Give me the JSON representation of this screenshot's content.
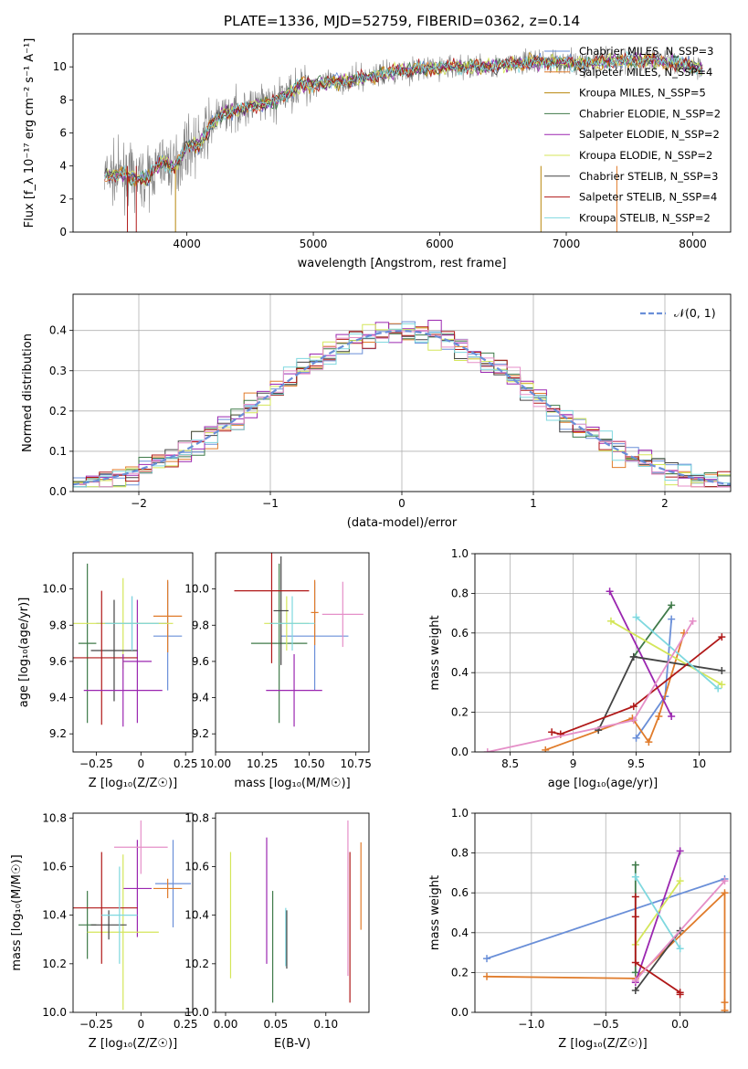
{
  "title": "PLATE=1336, MJD=52759, FIBERID=0362, z=0.14",
  "palette": [
    "#6a8fd8",
    "#e07b2a",
    "#3f7a49",
    "#9b27b0",
    "#d4e65a",
    "#444444",
    "#b01818",
    "#7fd8df",
    "#e58fc8"
  ],
  "chart_data": [
    {
      "id": "spectrum",
      "type": "line",
      "xlabel": "wavelength [Angstrom, rest frame]",
      "ylabel": "Flux [f_λ 10⁻¹⁷ erg cm⁻² s⁻¹ A⁻¹]",
      "xlim": [
        3100,
        8300
      ],
      "ylim": [
        0,
        12
      ],
      "xticks": [
        4000,
        5000,
        6000,
        7000,
        8000
      ],
      "yticks": [
        0,
        2,
        4,
        6,
        8,
        10
      ],
      "legend_position": "top-right",
      "data_color": "#808080",
      "continuum": [
        [
          3350,
          3.4
        ],
        [
          3500,
          3.5
        ],
        [
          3600,
          3.2
        ],
        [
          3700,
          3.3
        ],
        [
          3800,
          4.3
        ],
        [
          3900,
          3.9
        ],
        [
          4000,
          5.2
        ],
        [
          4100,
          5.3
        ],
        [
          4200,
          6.6
        ],
        [
          4300,
          7.2
        ],
        [
          4500,
          7.6
        ],
        [
          4700,
          7.9
        ],
        [
          4900,
          8.9
        ],
        [
          5100,
          9.0
        ],
        [
          5300,
          9.2
        ],
        [
          5500,
          9.5
        ],
        [
          5700,
          9.8
        ],
        [
          5900,
          9.9
        ],
        [
          6100,
          10.0
        ],
        [
          6300,
          10.0
        ],
        [
          6500,
          10.1
        ],
        [
          6700,
          10.3
        ],
        [
          6900,
          10.3
        ],
        [
          7100,
          10.2
        ],
        [
          7300,
          10.3
        ],
        [
          7500,
          10.4
        ],
        [
          7700,
          10.4
        ],
        [
          7900,
          10.2
        ],
        [
          8080,
          9.9
        ]
      ],
      "series": [
        {
          "name": "Chabrier MILES, N_SSP=3",
          "color": "#6a8fd8"
        },
        {
          "name": "Salpeter MILES, N_SSP=4",
          "color": "#e07b2a"
        },
        {
          "name": "Kroupa MILES, N_SSP=5",
          "color": "#b8860b"
        },
        {
          "name": "Chabrier ELODIE, N_SSP=2",
          "color": "#3f7a49"
        },
        {
          "name": "Salpeter ELODIE, N_SSP=2",
          "color": "#9b27b0"
        },
        {
          "name": "Kroupa ELODIE, N_SSP=2",
          "color": "#d4e65a"
        },
        {
          "name": "Chabrier STELIB, N_SSP=3",
          "color": "#444444"
        },
        {
          "name": "Salpeter STELIB, N_SSP=4",
          "color": "#b01818"
        },
        {
          "name": "Kroupa STELIB, N_SSP=2",
          "color": "#7fd8df"
        }
      ]
    },
    {
      "id": "residuals",
      "type": "histogram",
      "xlabel": "(data-model)/error",
      "ylabel": "Normed distribution",
      "xlim": [
        -2.5,
        2.5
      ],
      "ylim": [
        0,
        0.49
      ],
      "xticks": [
        -2,
        -1,
        0,
        1,
        2
      ],
      "yticks": [
        0.0,
        0.1,
        0.2,
        0.3,
        0.4
      ],
      "grid": true,
      "legend_position": "top-right",
      "reference_curve": {
        "name": "𝒩(0, 1)",
        "color": "#6a8fd8",
        "style": "dashed"
      },
      "bin_width": 0.1,
      "bin_start": -2.5
    },
    {
      "id": "age_Z",
      "type": "errorbar",
      "xlabel": "Z [log₁₀(Z/Z☉)]",
      "ylabel": "age  [log₁₀(age/yr)]",
      "xlim": [
        -0.38,
        0.29
      ],
      "ylim": [
        9.1,
        10.2
      ],
      "xticks": [
        -0.25,
        0.0,
        0.25
      ],
      "yticks": [
        9.2,
        9.4,
        9.6,
        9.8,
        10.0
      ],
      "points": [
        {
          "x": -0.05,
          "y": 9.81,
          "xerr": 0.2,
          "yerr": 0.15,
          "color": "#6a8fd8"
        },
        {
          "x": 0.15,
          "y": 9.74,
          "xerr": 0.08,
          "yerr": 0.3,
          "color": "#6a8fd8"
        },
        {
          "x": 0.15,
          "y": 9.85,
          "xerr": 0.08,
          "yerr": 0.2,
          "color": "#e07b2a"
        },
        {
          "x": -0.3,
          "y": 9.7,
          "xerr": 0.05,
          "yerr": 0.44,
          "color": "#3f7a49"
        },
        {
          "x": -0.02,
          "y": 9.6,
          "xerr": 0.08,
          "yerr": 0.34,
          "color": "#9b27b0"
        },
        {
          "x": -0.1,
          "y": 9.81,
          "xerr": 0.28,
          "yerr": 0.25,
          "color": "#d4e65a"
        },
        {
          "x": -0.15,
          "y": 9.66,
          "xerr": 0.13,
          "yerr": 0.28,
          "color": "#444444"
        },
        {
          "x": -0.22,
          "y": 9.62,
          "xerr": 0.2,
          "yerr": 0.37,
          "color": "#b01818"
        },
        {
          "x": -0.05,
          "y": 9.81,
          "xerr": 0.15,
          "yerr": 0.15,
          "color": "#7fd8df"
        },
        {
          "x": -0.1,
          "y": 9.44,
          "xerr": 0.22,
          "yerr": 0.2,
          "color": "#9b27b0"
        }
      ]
    },
    {
      "id": "age_mass",
      "type": "errorbar",
      "xlabel": "mass [log₁₀(M/M☉)]",
      "xlim": [
        10.0,
        10.82
      ],
      "ylim": [
        9.1,
        10.2
      ],
      "xticks": [
        10.0,
        10.25,
        10.5,
        10.75
      ],
      "xtick_labels": [
        "10.00",
        "10.25",
        "10.50",
        "10.75"
      ],
      "yticks": [
        9.2,
        9.4,
        9.6,
        9.8,
        10.0
      ],
      "points": [
        {
          "x": 10.53,
          "y": 9.74,
          "xerr": 0.18,
          "yerr": 0.3,
          "color": "#6a8fd8"
        },
        {
          "x": 10.53,
          "y": 9.87,
          "xerr": 0.02,
          "yerr": 0.18,
          "color": "#e07b2a"
        },
        {
          "x": 10.34,
          "y": 9.7,
          "xerr": 0.15,
          "yerr": 0.44,
          "color": "#3f7a49"
        },
        {
          "x": 10.42,
          "y": 9.44,
          "xerr": 0.15,
          "yerr": 0.2,
          "color": "#9b27b0"
        },
        {
          "x": 10.38,
          "y": 9.81,
          "xerr": 0.12,
          "yerr": 0.15,
          "color": "#d4e65a"
        },
        {
          "x": 10.35,
          "y": 9.88,
          "xerr": 0.04,
          "yerr": 0.3,
          "color": "#444444"
        },
        {
          "x": 10.3,
          "y": 9.99,
          "xerr": 0.2,
          "yerr": 0.4,
          "color": "#b01818"
        },
        {
          "x": 10.41,
          "y": 9.81,
          "xerr": 0.12,
          "yerr": 0.15,
          "color": "#7fd8df"
        },
        {
          "x": 10.68,
          "y": 9.86,
          "xerr": 0.11,
          "yerr": 0.18,
          "color": "#e58fc8"
        }
      ]
    },
    {
      "id": "weight_age",
      "type": "line",
      "xlabel": "age  [log₁₀(age/yr)]",
      "ylabel": "mass weight",
      "xlim": [
        8.22,
        10.25
      ],
      "ylim": [
        0,
        1.0
      ],
      "xticks": [
        8.5,
        9.0,
        9.5,
        10.0
      ],
      "yticks": [
        0.0,
        0.2,
        0.4,
        0.6,
        0.8,
        1.0
      ],
      "grid": true,
      "series": [
        {
          "color": "#6a8fd8",
          "points": [
            [
              9.5,
              0.07
            ],
            [
              9.73,
              0.28
            ],
            [
              9.78,
              0.67
            ]
          ]
        },
        {
          "color": "#e07b2a",
          "points": [
            [
              8.78,
              0.01
            ],
            [
              9.47,
              0.17
            ],
            [
              9.6,
              0.05
            ],
            [
              9.68,
              0.18
            ],
            [
              9.88,
              0.6
            ]
          ]
        },
        {
          "color": "#3f7a49",
          "points": [
            [
              9.48,
              0.48
            ],
            [
              9.78,
              0.74
            ]
          ]
        },
        {
          "color": "#9b27b0",
          "points": [
            [
              9.29,
              0.81
            ],
            [
              9.78,
              0.18
            ]
          ]
        },
        {
          "color": "#d4e65a",
          "points": [
            [
              9.3,
              0.66
            ],
            [
              10.18,
              0.34
            ]
          ]
        },
        {
          "color": "#444444",
          "points": [
            [
              9.2,
              0.11
            ],
            [
              9.48,
              0.48
            ],
            [
              10.18,
              0.41
            ]
          ]
        },
        {
          "color": "#b01818",
          "points": [
            [
              8.83,
              0.1
            ],
            [
              8.9,
              0.09
            ],
            [
              9.48,
              0.23
            ],
            [
              10.18,
              0.58
            ]
          ]
        },
        {
          "color": "#7fd8df",
          "points": [
            [
              9.5,
              0.68
            ],
            [
              10.15,
              0.32
            ]
          ]
        },
        {
          "color": "#e58fc8",
          "points": [
            [
              8.32,
              0.0
            ],
            [
              9.48,
              0.16
            ],
            [
              9.95,
              0.66
            ]
          ]
        }
      ]
    },
    {
      "id": "mass_Z",
      "type": "errorbar",
      "xlabel": "Z [log₁₀(Z/Z☉)]",
      "ylabel": "mass [log₁₀(M/M☉)]",
      "xlim": [
        -0.38,
        0.29
      ],
      "ylim": [
        10.0,
        10.82
      ],
      "xticks": [
        -0.25,
        0.0,
        0.25
      ],
      "yticks": [
        10.0,
        10.2,
        10.4,
        10.6,
        10.8
      ],
      "points": [
        {
          "x": 0.18,
          "y": 10.53,
          "xerr": 0.1,
          "yerr": 0.18,
          "color": "#6a8fd8"
        },
        {
          "x": 0.15,
          "y": 10.51,
          "xerr": 0.08,
          "yerr": 0.04,
          "color": "#e07b2a"
        },
        {
          "x": -0.3,
          "y": 10.36,
          "xerr": 0.05,
          "yerr": 0.14,
          "color": "#3f7a49"
        },
        {
          "x": -0.02,
          "y": 10.51,
          "xerr": 0.08,
          "yerr": 0.2,
          "color": "#9b27b0"
        },
        {
          "x": -0.1,
          "y": 10.33,
          "xerr": 0.2,
          "yerr": 0.32,
          "color": "#d4e65a"
        },
        {
          "x": -0.18,
          "y": 10.36,
          "xerr": 0.1,
          "yerr": 0.06,
          "color": "#444444"
        },
        {
          "x": -0.22,
          "y": 10.43,
          "xerr": 0.2,
          "yerr": 0.23,
          "color": "#b01818"
        },
        {
          "x": -0.12,
          "y": 10.4,
          "xerr": 0.1,
          "yerr": 0.2,
          "color": "#7fd8df"
        },
        {
          "x": 0.0,
          "y": 10.68,
          "xerr": 0.15,
          "yerr": 0.11,
          "color": "#e58fc8"
        }
      ]
    },
    {
      "id": "mass_ebv",
      "type": "errorbar",
      "xlabel": "E(B-V)",
      "xlim": [
        -0.01,
        0.143
      ],
      "ylim": [
        10.0,
        10.82
      ],
      "xticks": [
        0.0,
        0.05,
        0.1
      ],
      "xtick_labels": [
        "0.00",
        "0.05",
        "0.10"
      ],
      "yticks": [
        10.0,
        10.2,
        10.4,
        10.6,
        10.8
      ],
      "points": [
        {
          "x": 0.005,
          "y": 10.4,
          "yerr": 0.26,
          "color": "#d4e65a"
        },
        {
          "x": 0.041,
          "y": 10.46,
          "yerr": 0.26,
          "color": "#9b27b0"
        },
        {
          "x": 0.047,
          "y": 10.27,
          "yerr": 0.23,
          "color": "#3f7a49"
        },
        {
          "x": 0.06,
          "y": 10.31,
          "yerr": 0.12,
          "color": "#7fd8df"
        },
        {
          "x": 0.061,
          "y": 10.3,
          "yerr": 0.12,
          "color": "#444444"
        },
        {
          "x": 0.122,
          "y": 10.47,
          "yerr": 0.32,
          "color": "#e58fc8"
        },
        {
          "x": 0.124,
          "y": 10.35,
          "yerr": 0.31,
          "color": "#b01818"
        },
        {
          "x": 0.135,
          "y": 10.52,
          "yerr": 0.18,
          "color": "#e07b2a"
        }
      ]
    },
    {
      "id": "weight_Z",
      "type": "line",
      "xlabel": "Z [log₁₀(Z/Z☉)]",
      "ylabel": "mass weight",
      "xlim": [
        -1.38,
        0.34
      ],
      "ylim": [
        0,
        1.0
      ],
      "xticks": [
        -1.0,
        -0.5,
        0.0
      ],
      "xtick_labels": [
        "−1.0",
        "−0.5",
        "0.0"
      ],
      "yticks": [
        0.0,
        0.2,
        0.4,
        0.6,
        0.8,
        1.0
      ],
      "grid": true,
      "series": [
        {
          "color": "#6a8fd8",
          "points": [
            [
              -1.3,
              0.27
            ],
            [
              0.3,
              0.67
            ]
          ]
        },
        {
          "color": "#e07b2a",
          "points": [
            [
              -1.3,
              0.18
            ],
            [
              -0.3,
              0.17
            ],
            [
              0.3,
              0.6
            ],
            [
              0.3,
              0.05
            ],
            [
              0.3,
              0.01
            ]
          ]
        },
        {
          "color": "#3f7a49",
          "points": [
            [
              -0.3,
              0.74
            ],
            [
              -0.3,
              0.2
            ]
          ]
        },
        {
          "color": "#9b27b0",
          "points": [
            [
              -0.3,
              0.15
            ],
            [
              0.0,
              0.81
            ]
          ]
        },
        {
          "color": "#d4e65a",
          "points": [
            [
              -0.3,
              0.34
            ],
            [
              0.0,
              0.66
            ]
          ]
        },
        {
          "color": "#444444",
          "points": [
            [
              -0.3,
              0.11
            ],
            [
              0.0,
              0.41
            ]
          ]
        },
        {
          "color": "#b01818",
          "points": [
            [
              -0.3,
              0.58
            ],
            [
              -0.3,
              0.48
            ],
            [
              -0.3,
              0.25
            ],
            [
              0.0,
              0.1
            ],
            [
              0.0,
              0.09
            ]
          ]
        },
        {
          "color": "#7fd8df",
          "points": [
            [
              -0.3,
              0.68
            ],
            [
              0.0,
              0.32
            ]
          ]
        },
        {
          "color": "#e58fc8",
          "points": [
            [
              -0.3,
              0.16
            ],
            [
              0.3,
              0.66
            ]
          ]
        }
      ]
    }
  ]
}
